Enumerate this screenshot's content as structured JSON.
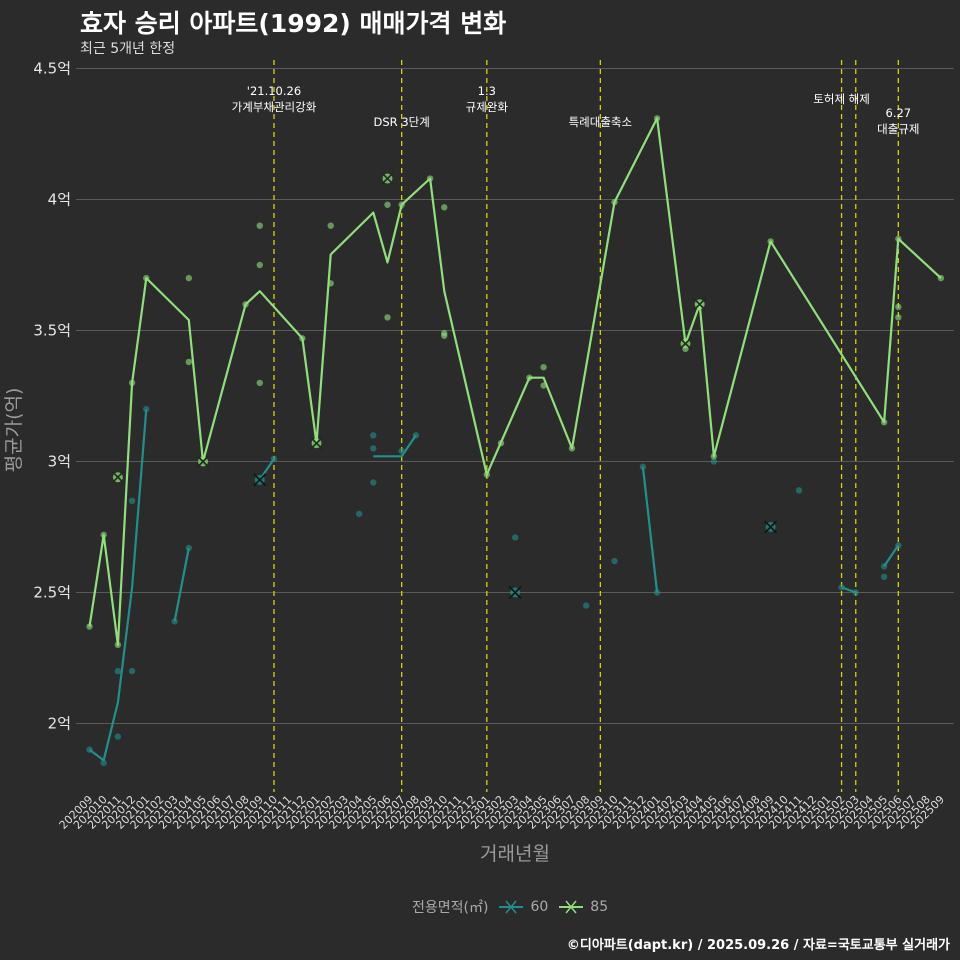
{
  "title": "효자 승리 아파트(1992) 매매가격 변화",
  "subtitle": "최근 5개년 한정",
  "caption": "©디아파트(dapt.kr) / 2025.09.26 / 자료=국토교통부 실거래가",
  "legend_title": "전용면적(㎡)",
  "colors": {
    "background": "#2b2b2b",
    "grid": "#5a5a5a",
    "event_line": "#d4d400",
    "series_60": "#21908c",
    "series_85": "#8fe07a"
  },
  "chart_data": {
    "type": "line",
    "xlabel": "거래년월",
    "ylabel": "평균가(억)",
    "ylim": [
      1.72,
      4.5
    ],
    "y_ticks": [
      2,
      2.5,
      3,
      3.5,
      4,
      4.5
    ],
    "y_tick_labels": [
      "2억",
      "2.5억",
      "3억",
      "3.5억",
      "4억",
      "4.5억"
    ],
    "x_categories": [
      "202009",
      "202010",
      "202011",
      "202012",
      "202101",
      "202102",
      "202103",
      "202104",
      "202105",
      "202106",
      "202107",
      "202108",
      "202109",
      "202110",
      "202111",
      "202112",
      "202201",
      "202202",
      "202203",
      "202204",
      "202205",
      "202206",
      "202207",
      "202208",
      "202209",
      "202210",
      "202211",
      "202212",
      "202301",
      "202302",
      "202303",
      "202304",
      "202305",
      "202306",
      "202307",
      "202308",
      "202309",
      "202310",
      "202311",
      "202312",
      "202401",
      "202402",
      "202403",
      "202404",
      "202405",
      "202406",
      "202407",
      "202408",
      "202409",
      "202410",
      "202411",
      "202412",
      "202501",
      "202502",
      "202503",
      "202504",
      "202505",
      "202506",
      "202507",
      "202508",
      "202509"
    ],
    "events": [
      {
        "x": 13,
        "label": "'21.10.26\n가계부채관리강화"
      },
      {
        "x": 22,
        "label": "DSR 3단계"
      },
      {
        "x": 28,
        "label": "1.3\n규제완화"
      },
      {
        "x": 36,
        "label": "특례대출축소"
      },
      {
        "x": 53,
        "label": "토허제 해제"
      },
      {
        "x": 54,
        "label": ""
      },
      {
        "x": 57,
        "label": "6.27\n대출규제"
      }
    ],
    "series": [
      {
        "name": "60",
        "lines": [
          [
            [
              0,
              1.9
            ],
            [
              1,
              1.86
            ],
            [
              2,
              2.08
            ],
            [
              3,
              2.52
            ],
            [
              4,
              3.2
            ]
          ],
          [
            [
              6,
              2.39
            ],
            [
              7,
              2.67
            ]
          ],
          [
            [
              12,
              2.93
            ],
            [
              13,
              3.01
            ]
          ],
          [
            [
              20,
              3.02
            ],
            [
              22,
              3.02
            ],
            [
              23,
              3.1
            ]
          ],
          [
            [
              39,
              2.98
            ],
            [
              40,
              2.5
            ]
          ],
          [
            [
              53,
              2.52
            ],
            [
              54,
              2.5
            ]
          ],
          [
            [
              56,
              2.6
            ],
            [
              57,
              2.68
            ]
          ]
        ],
        "points": [
          [
            0,
            1.9
          ],
          [
            1,
            1.85
          ],
          [
            2,
            1.95
          ],
          [
            2,
            2.2
          ],
          [
            3,
            2.2
          ],
          [
            3,
            2.85
          ],
          [
            4,
            3.2
          ],
          [
            6,
            2.39
          ],
          [
            7,
            2.67
          ],
          [
            13,
            3.01
          ],
          [
            19,
            2.8
          ],
          [
            20,
            3.1
          ],
          [
            20,
            3.05
          ],
          [
            20,
            2.92
          ],
          [
            22,
            3.04
          ],
          [
            23,
            3.1
          ],
          [
            30,
            2.71
          ],
          [
            35,
            2.45
          ],
          [
            37,
            2.62
          ],
          [
            39,
            2.98
          ],
          [
            40,
            2.5
          ],
          [
            44,
            3.0
          ],
          [
            50,
            2.89
          ],
          [
            53,
            2.52
          ],
          [
            54,
            2.5
          ],
          [
            56,
            2.6
          ],
          [
            56,
            2.56
          ],
          [
            57,
            2.68
          ]
        ],
        "crosses": [
          [
            12,
            2.93
          ],
          [
            30,
            2.5
          ],
          [
            48,
            2.75
          ]
        ]
      },
      {
        "name": "85",
        "lines": [
          [
            [
              0,
              2.37
            ],
            [
              1,
              2.72
            ],
            [
              2,
              2.3
            ],
            [
              3,
              3.3
            ],
            [
              4,
              3.7
            ],
            [
              7,
              3.54
            ],
            [
              8,
              3.0
            ],
            [
              11,
              3.6
            ],
            [
              12,
              3.65
            ],
            [
              15,
              3.47
            ],
            [
              16,
              3.07
            ],
            [
              17,
              3.79
            ],
            [
              20,
              3.95
            ],
            [
              21,
              3.76
            ],
            [
              22,
              3.98
            ],
            [
              24,
              4.08
            ],
            [
              25,
              3.65
            ],
            [
              28,
              2.95
            ],
            [
              31,
              3.32
            ],
            [
              32,
              3.32
            ],
            [
              34,
              3.05
            ],
            [
              37,
              3.99
            ],
            [
              40,
              4.31
            ],
            [
              42,
              3.45
            ],
            [
              43,
              3.6
            ],
            [
              44,
              3.02
            ],
            [
              48,
              3.84
            ],
            [
              56,
              3.15
            ],
            [
              57,
              3.85
            ],
            [
              60,
              3.7
            ]
          ]
        ],
        "points": [
          [
            0,
            2.37
          ],
          [
            1,
            2.72
          ],
          [
            2,
            2.3
          ],
          [
            3,
            3.3
          ],
          [
            4,
            3.7
          ],
          [
            7,
            3.7
          ],
          [
            7,
            3.38
          ],
          [
            11,
            3.6
          ],
          [
            12,
            3.9
          ],
          [
            12,
            3.75
          ],
          [
            12,
            3.3
          ],
          [
            15,
            3.47
          ],
          [
            17,
            3.9
          ],
          [
            17,
            3.68
          ],
          [
            21,
            3.98
          ],
          [
            21,
            3.55
          ],
          [
            22,
            3.98
          ],
          [
            24,
            4.08
          ],
          [
            25,
            3.97
          ],
          [
            25,
            3.49
          ],
          [
            25,
            3.48
          ],
          [
            28,
            2.95
          ],
          [
            29,
            3.07
          ],
          [
            31,
            3.32
          ],
          [
            32,
            3.36
          ],
          [
            32,
            3.29
          ],
          [
            34,
            3.05
          ],
          [
            37,
            3.99
          ],
          [
            40,
            4.31
          ],
          [
            42,
            3.43
          ],
          [
            43,
            3.6
          ],
          [
            44,
            3.02
          ],
          [
            48,
            3.84
          ],
          [
            56,
            3.15
          ],
          [
            57,
            3.85
          ],
          [
            57,
            3.59
          ],
          [
            57,
            3.55
          ],
          [
            60,
            3.7
          ]
        ],
        "crosses": [
          [
            2,
            2.94
          ],
          [
            8,
            3.0
          ],
          [
            16,
            3.07
          ],
          [
            21,
            4.08
          ],
          [
            42,
            3.45
          ],
          [
            43,
            3.6
          ]
        ]
      }
    ]
  }
}
